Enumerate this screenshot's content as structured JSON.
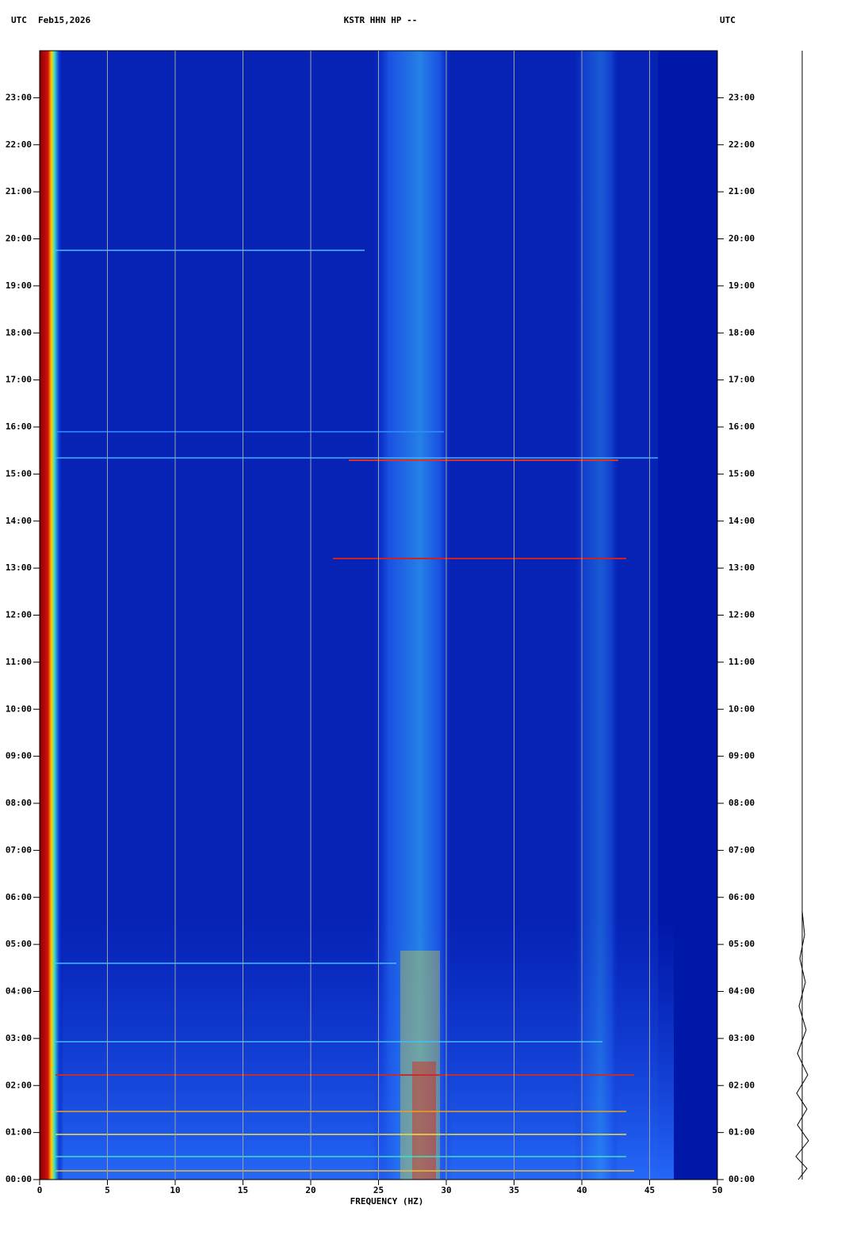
{
  "chart_data": {
    "type": "spectrogram",
    "timezone_left": "UTC",
    "date": "Feb15,2026",
    "title": "KSTR HHN HP --",
    "timezone_right": "UTC",
    "xlabel": "FREQUENCY (HZ)",
    "xlim": [
      0,
      50
    ],
    "xticks": [
      0,
      5,
      10,
      15,
      20,
      25,
      30,
      35,
      40,
      45,
      50
    ],
    "ylim": [
      0,
      24
    ],
    "yticks": [
      {
        "value": 0,
        "label": "00:00"
      },
      {
        "value": 1,
        "label": "01:00"
      },
      {
        "value": 2,
        "label": "02:00"
      },
      {
        "value": 3,
        "label": "03:00"
      },
      {
        "value": 4,
        "label": "04:00"
      },
      {
        "value": 5,
        "label": "05:00"
      },
      {
        "value": 6,
        "label": "06:00"
      },
      {
        "value": 7,
        "label": "07:00"
      },
      {
        "value": 8,
        "label": "08:00"
      },
      {
        "value": 9,
        "label": "09:00"
      },
      {
        "value": 10,
        "label": "10:00"
      },
      {
        "value": 11,
        "label": "11:00"
      },
      {
        "value": 12,
        "label": "12:00"
      },
      {
        "value": 13,
        "label": "13:00"
      },
      {
        "value": 14,
        "label": "14:00"
      },
      {
        "value": 15,
        "label": "15:00"
      },
      {
        "value": 16,
        "label": "16:00"
      },
      {
        "value": 17,
        "label": "17:00"
      },
      {
        "value": 18,
        "label": "18:00"
      },
      {
        "value": 19,
        "label": "19:00"
      },
      {
        "value": 20,
        "label": "20:00"
      },
      {
        "value": 21,
        "label": "21:00"
      },
      {
        "value": 22,
        "label": "22:00"
      },
      {
        "value": 23,
        "label": "23:00"
      }
    ],
    "grid": true
  }
}
